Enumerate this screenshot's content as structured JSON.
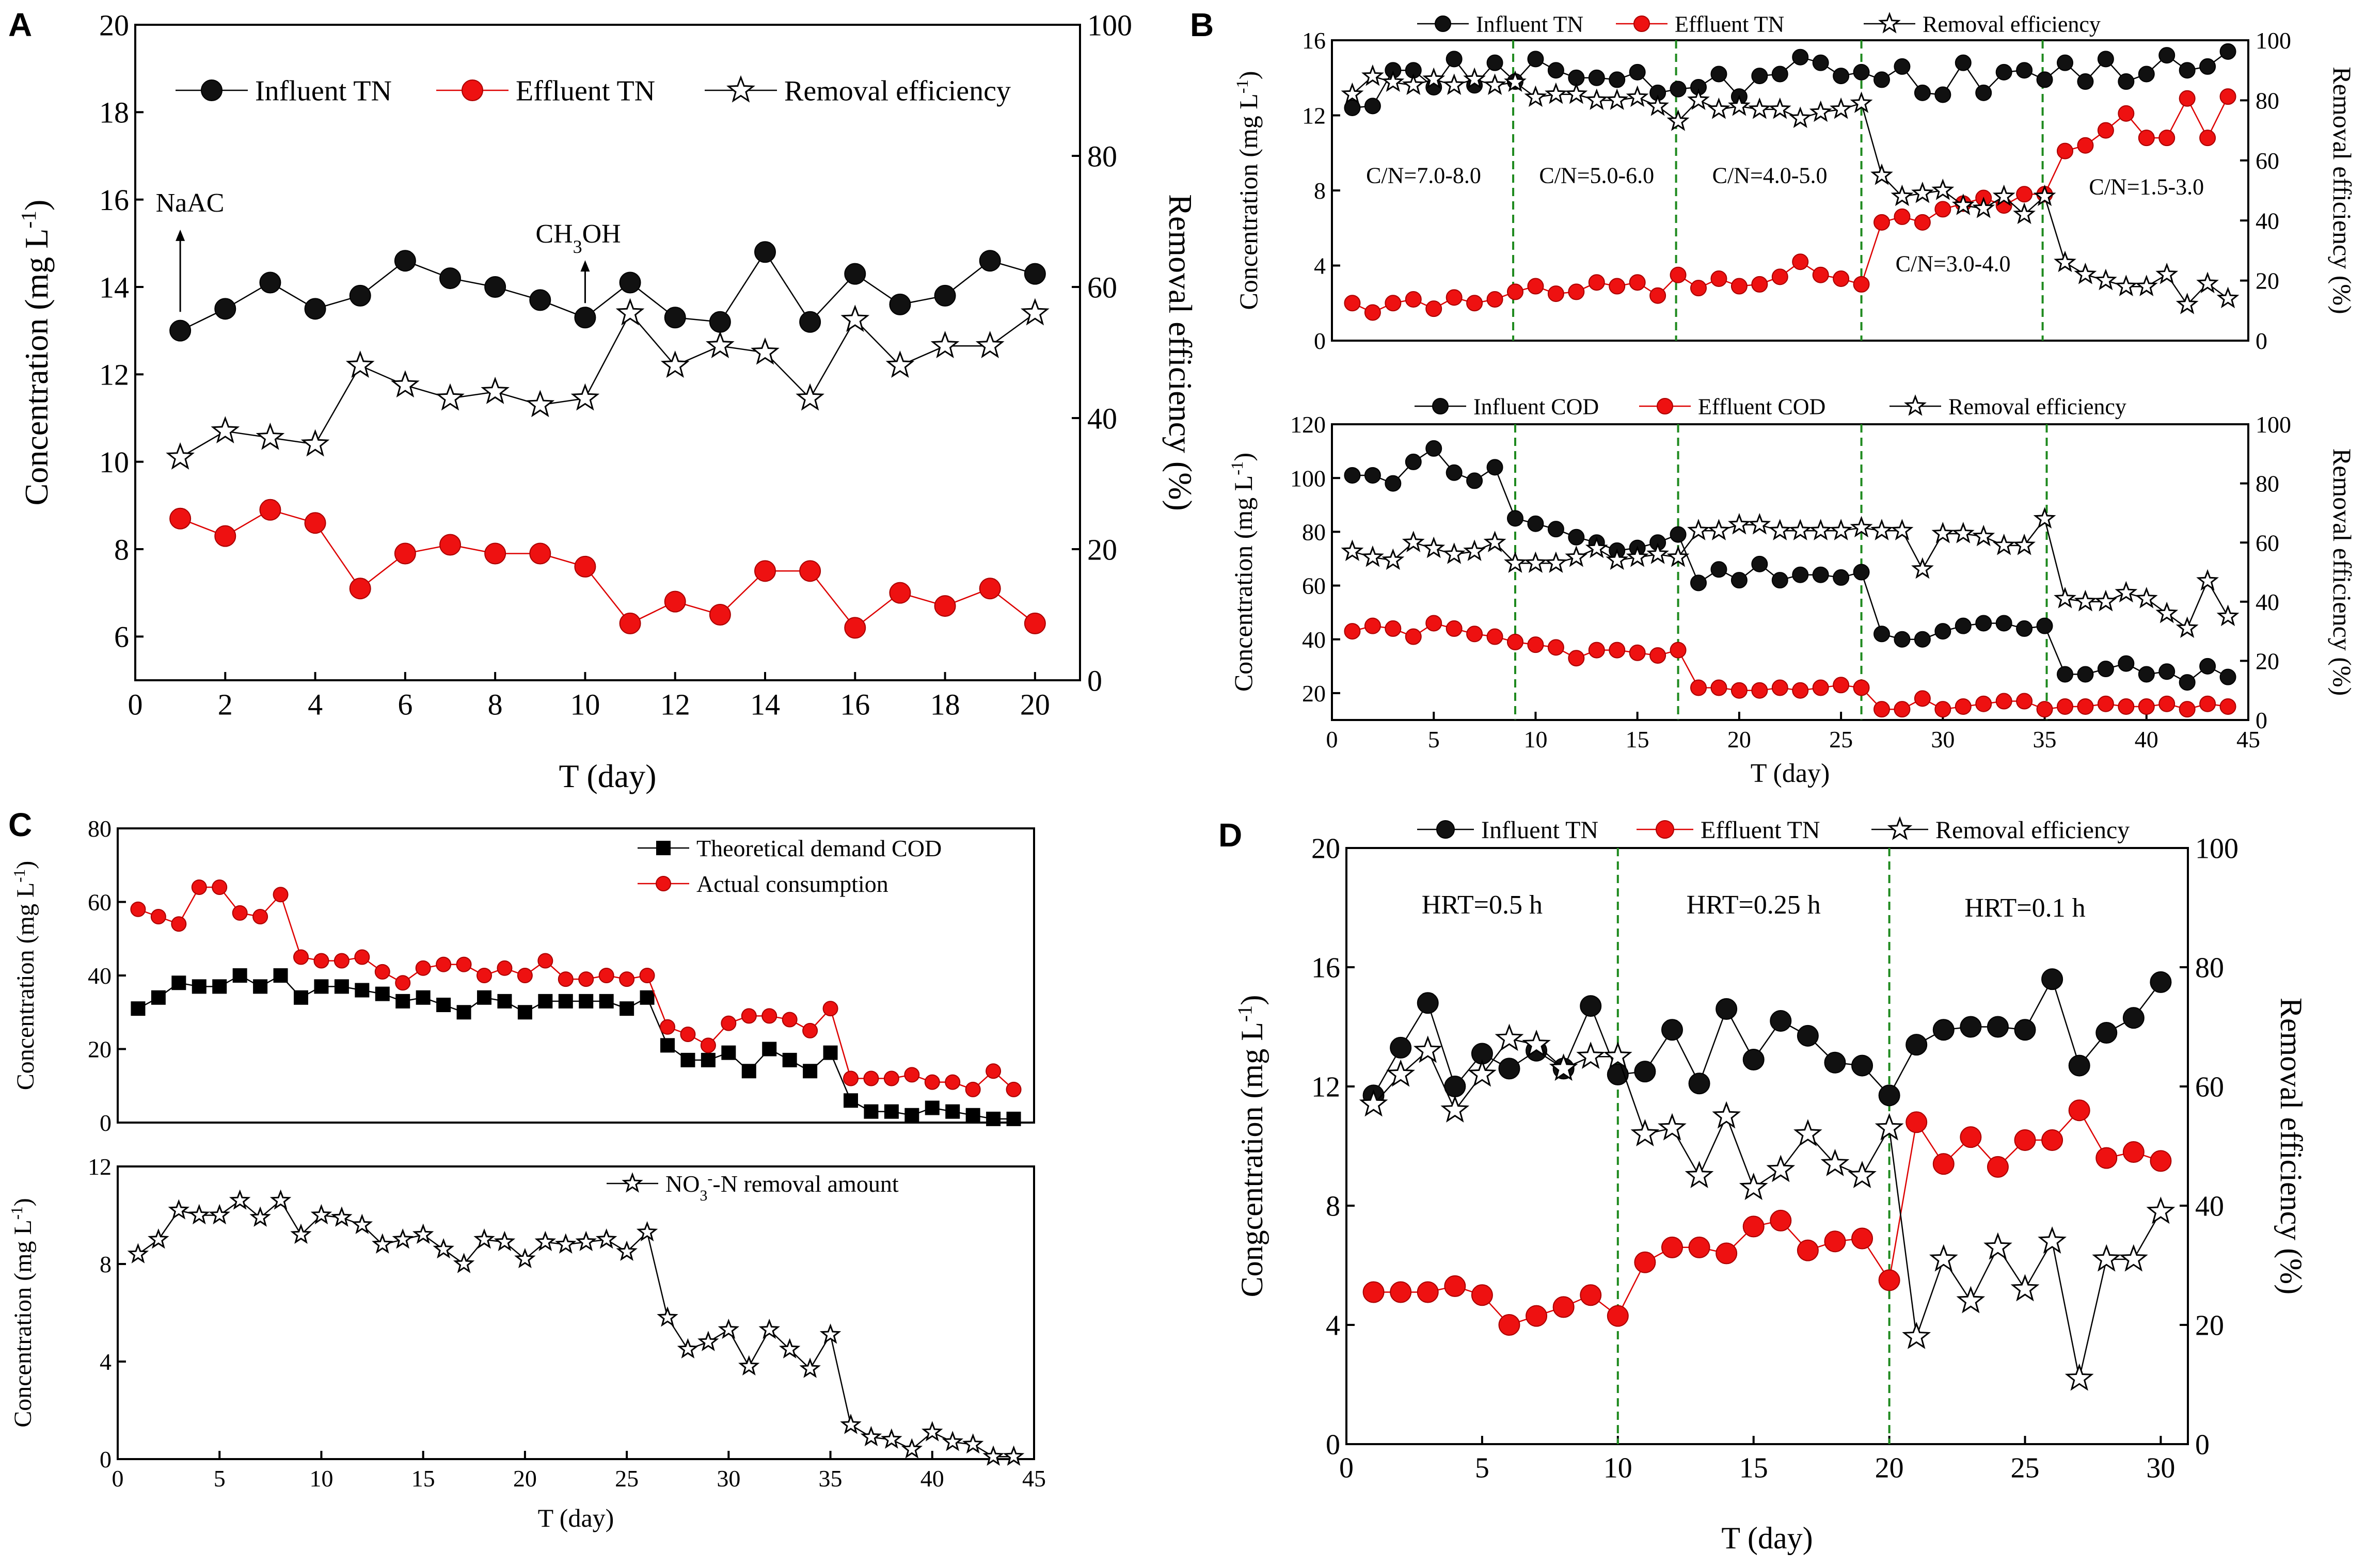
{
  "figure": {
    "panels": [
      "A",
      "B",
      "C",
      "D"
    ]
  },
  "chart_data": [
    {
      "id": "A",
      "type": "line",
      "xlabel": "T (day)",
      "ylabel": "Concentration (mg L-1)",
      "y2label": "Removal efficiency (%)",
      "xlim": [
        0,
        21
      ],
      "ylim": [
        5,
        20
      ],
      "y2lim": [
        0,
        100
      ],
      "xticks": [
        0,
        2,
        4,
        6,
        8,
        10,
        12,
        14,
        16,
        18,
        20
      ],
      "yticks": [
        6,
        8,
        10,
        12,
        14,
        16,
        18,
        20
      ],
      "y2ticks": [
        0,
        20,
        40,
        60,
        80,
        100
      ],
      "legend": "top",
      "annotations": [
        {
          "text": "NaAC",
          "x": 1,
          "y": 13.1
        },
        {
          "text": "CH3OH",
          "x": 10,
          "y": 13.3
        }
      ],
      "x": [
        1,
        2,
        3,
        4,
        5,
        6,
        7,
        8,
        9,
        10,
        11,
        12,
        13,
        14,
        15,
        16,
        17,
        18,
        19,
        20
      ],
      "series": [
        {
          "name": "Influent TN",
          "axis": "left",
          "marker": "black-circle",
          "values": [
            13.0,
            13.5,
            14.1,
            13.5,
            13.8,
            14.6,
            14.2,
            14.0,
            13.7,
            13.3,
            14.1,
            13.3,
            13.2,
            14.8,
            13.2,
            14.3,
            13.6,
            13.8,
            14.6,
            14.3
          ]
        },
        {
          "name": "Effluent TN",
          "axis": "left",
          "marker": "red-circle",
          "values": [
            8.7,
            8.3,
            8.9,
            8.6,
            7.1,
            7.9,
            8.1,
            7.9,
            7.9,
            7.6,
            6.3,
            6.8,
            6.5,
            7.5,
            7.5,
            6.2,
            7.0,
            6.7,
            7.1,
            6.3
          ]
        },
        {
          "name": "Removal efficiency",
          "axis": "right",
          "marker": "star",
          "values": [
            34,
            38,
            37,
            36,
            48,
            45,
            43,
            44,
            42,
            43,
            56,
            48,
            51,
            50,
            43,
            55,
            48,
            51,
            51,
            56
          ]
        }
      ]
    },
    {
      "id": "B-top",
      "type": "line",
      "xlabel": "",
      "ylabel": "Concentration (mg L-1)",
      "y2label": "Removal efficiency (%)",
      "xlim": [
        0,
        45
      ],
      "ylim": [
        0,
        16
      ],
      "y2lim": [
        0,
        100
      ],
      "xticks": [],
      "yticks": [
        0,
        4,
        8,
        12,
        16
      ],
      "y2ticks": [
        0,
        20,
        40,
        60,
        80,
        100
      ],
      "legend": "top",
      "phase_lines": [
        8.9,
        16.9,
        26.0,
        34.9
      ],
      "phase_labels": [
        {
          "text": "C/N=7.0-8.0",
          "x": 4.5,
          "y": 8.4
        },
        {
          "text": "C/N=5.0-6.0",
          "x": 13,
          "y": 8.4
        },
        {
          "text": "C/N=4.0-5.0",
          "x": 21.5,
          "y": 8.4
        },
        {
          "text": "C/N=3.0-4.0",
          "x": 30.5,
          "y": 3.7
        },
        {
          "text": "C/N=1.5-3.0",
          "x": 40,
          "y": 7.8
        }
      ],
      "x": [
        1,
        2,
        3,
        4,
        5,
        6,
        7,
        8,
        9,
        10,
        11,
        12,
        13,
        14,
        15,
        16,
        17,
        18,
        19,
        20,
        21,
        22,
        23,
        24,
        25,
        26,
        27,
        28,
        29,
        30,
        31,
        32,
        33,
        34,
        35,
        36,
        37,
        38,
        39,
        40,
        41,
        42,
        43,
        44
      ],
      "series": [
        {
          "name": "Influent TN",
          "axis": "left",
          "marker": "black-circle",
          "values": [
            12.4,
            12.5,
            14.4,
            14.4,
            13.5,
            15.0,
            13.6,
            14.8,
            13.8,
            15.0,
            14.4,
            14.0,
            14.0,
            13.9,
            14.3,
            13.2,
            13.4,
            13.5,
            14.2,
            13.0,
            14.1,
            14.2,
            15.1,
            14.8,
            14.1,
            14.3,
            13.9,
            14.6,
            13.2,
            13.1,
            14.8,
            13.2,
            14.3,
            14.4,
            13.9,
            14.8,
            13.8,
            15.0,
            13.8,
            14.2,
            15.2,
            14.4,
            14.6,
            15.4
          ]
        },
        {
          "name": "Effluent TN",
          "axis": "left",
          "marker": "red-circle",
          "values": [
            2.0,
            1.5,
            2.0,
            2.2,
            1.7,
            2.3,
            2.0,
            2.2,
            2.6,
            2.9,
            2.5,
            2.6,
            3.1,
            2.9,
            3.1,
            2.4,
            3.5,
            2.8,
            3.3,
            2.9,
            3.0,
            3.4,
            4.2,
            3.5,
            3.3,
            3.0,
            6.3,
            6.6,
            6.3,
            7.0,
            7.3,
            7.6,
            7.2,
            7.8,
            7.8,
            10.1,
            10.4,
            11.2,
            12.1,
            10.8,
            10.8,
            12.9,
            10.8,
            13.0
          ]
        },
        {
          "name": "Removal efficiency",
          "axis": "right",
          "marker": "star",
          "values": [
            82,
            88,
            86,
            85,
            87,
            85,
            87,
            85,
            86,
            81,
            82,
            82,
            80,
            80,
            81,
            78,
            73,
            80,
            77,
            78,
            77,
            77,
            74,
            76,
            77,
            79,
            55,
            48,
            49,
            50,
            45,
            44,
            48,
            42,
            48,
            26,
            22,
            20,
            18,
            18,
            22,
            12,
            19,
            14
          ]
        }
      ]
    },
    {
      "id": "B-bottom",
      "type": "line",
      "xlabel": "T (day)",
      "ylabel": "Concentration (mg L-1)",
      "y2label": "Removal efficiency (%)",
      "xlim": [
        0,
        45
      ],
      "ylim": [
        10,
        120
      ],
      "y2lim": [
        0,
        100
      ],
      "xticks": [
        0,
        5,
        10,
        15,
        20,
        25,
        30,
        35,
        40,
        45
      ],
      "yticks": [
        20,
        40,
        60,
        80,
        100,
        120
      ],
      "y2ticks": [
        0,
        20,
        40,
        60,
        80,
        100
      ],
      "legend": "top",
      "phase_lines": [
        9,
        17,
        26,
        35.1
      ],
      "x": [
        1,
        2,
        3,
        4,
        5,
        6,
        7,
        8,
        9,
        10,
        11,
        12,
        13,
        14,
        15,
        16,
        17,
        18,
        19,
        20,
        21,
        22,
        23,
        24,
        25,
        26,
        27,
        28,
        29,
        30,
        31,
        32,
        33,
        34,
        35,
        36,
        37,
        38,
        39,
        40,
        41,
        42,
        43,
        44
      ],
      "series": [
        {
          "name": "Influent COD",
          "axis": "left",
          "marker": "black-circle",
          "values": [
            101,
            101,
            98,
            106,
            111,
            102,
            99,
            104,
            85,
            83,
            81,
            78,
            76,
            73,
            74,
            76,
            79,
            61,
            66,
            62,
            68,
            62,
            64,
            64,
            63,
            65,
            42,
            40,
            40,
            43,
            45,
            46,
            46,
            44,
            45,
            27,
            27,
            29,
            31,
            27,
            28,
            24,
            30,
            26
          ]
        },
        {
          "name": "Effluent COD",
          "axis": "left",
          "marker": "red-circle",
          "values": [
            43,
            45,
            44,
            41,
            46,
            44,
            42,
            41,
            39,
            38,
            37,
            33,
            36,
            36,
            35,
            34,
            36,
            22,
            22,
            21,
            21,
            22,
            21,
            22,
            23,
            22,
            14,
            14,
            18,
            14,
            15,
            16,
            17,
            17,
            14,
            15,
            15,
            16,
            15,
            15,
            16,
            14,
            16,
            15
          ]
        },
        {
          "name": "Removal efficiency",
          "axis": "right",
          "marker": "star",
          "values": [
            57,
            55,
            54,
            60,
            58,
            56,
            57,
            60,
            53,
            53,
            53,
            55,
            58,
            54,
            55,
            56,
            55,
            64,
            64,
            66,
            66,
            64,
            64,
            64,
            64,
            65,
            64,
            64,
            51,
            63,
            63,
            62,
            59,
            59,
            68,
            41,
            40,
            40,
            43,
            41,
            36,
            31,
            47,
            35
          ]
        }
      ]
    },
    {
      "id": "C-top",
      "type": "line",
      "xlabel": "",
      "ylabel": "Concentration (mg L-1)",
      "xlim": [
        0,
        45
      ],
      "ylim": [
        0,
        80
      ],
      "xticks": [],
      "yticks": [
        0,
        20,
        40,
        60,
        80
      ],
      "legend": "top-right",
      "x": [
        1,
        2,
        3,
        4,
        5,
        6,
        7,
        8,
        9,
        10,
        11,
        12,
        13,
        14,
        15,
        16,
        17,
        18,
        19,
        20,
        21,
        22,
        23,
        24,
        25,
        26,
        27,
        28,
        29,
        30,
        31,
        32,
        33,
        34,
        35,
        36,
        37,
        38,
        39,
        40,
        41,
        42,
        43,
        44
      ],
      "series": [
        {
          "name": "Theoretical demand COD",
          "marker": "black-square",
          "values": [
            31,
            34,
            38,
            37,
            37,
            40,
            37,
            40,
            34,
            37,
            37,
            36,
            35,
            33,
            34,
            32,
            30,
            34,
            33,
            30,
            33,
            33,
            33,
            33,
            31,
            34,
            21,
            17,
            17,
            19,
            14,
            20,
            17,
            14,
            19,
            6,
            3,
            3,
            2,
            4,
            3,
            2,
            1,
            1
          ]
        },
        {
          "name": "Actual consumption",
          "marker": "red-circle",
          "values": [
            58,
            56,
            54,
            64,
            64,
            57,
            56,
            62,
            45,
            44,
            44,
            45,
            41,
            38,
            42,
            43,
            43,
            40,
            42,
            40,
            44,
            39,
            39,
            40,
            39,
            40,
            26,
            24,
            21,
            27,
            29,
            29,
            28,
            25,
            31,
            12,
            12,
            12,
            13,
            11,
            11,
            9,
            14,
            9
          ]
        }
      ]
    },
    {
      "id": "C-bottom",
      "type": "line",
      "xlabel": "T (day)",
      "ylabel": "Concentration (mg L-1)",
      "xlim": [
        0,
        45
      ],
      "ylim": [
        0,
        12
      ],
      "xticks": [
        0,
        5,
        10,
        15,
        20,
        25,
        30,
        35,
        40,
        45
      ],
      "yticks": [
        0,
        4,
        8,
        12
      ],
      "legend": "top-right",
      "x": [
        1,
        2,
        3,
        4,
        5,
        6,
        7,
        8,
        9,
        10,
        11,
        12,
        13,
        14,
        15,
        16,
        17,
        18,
        19,
        20,
        21,
        22,
        23,
        24,
        25,
        26,
        27,
        28,
        29,
        30,
        31,
        32,
        33,
        34,
        35,
        36,
        37,
        38,
        39,
        40,
        41,
        42,
        43,
        44
      ],
      "series": [
        {
          "name": "NO3--N removal amount",
          "marker": "star",
          "values": [
            8.4,
            9.0,
            10.2,
            10.0,
            10.0,
            10.6,
            9.9,
            10.6,
            9.2,
            10.0,
            9.9,
            9.6,
            8.8,
            9.0,
            9.2,
            8.6,
            8.0,
            9.0,
            8.9,
            8.2,
            8.9,
            8.8,
            8.9,
            9.0,
            8.5,
            9.3,
            5.8,
            4.5,
            4.8,
            5.3,
            3.8,
            5.3,
            4.5,
            3.7,
            5.1,
            1.4,
            0.9,
            0.8,
            0.4,
            1.1,
            0.7,
            0.6,
            0.1,
            0.1
          ]
        }
      ]
    },
    {
      "id": "D",
      "type": "line",
      "xlabel": "T (day)",
      "ylabel": "Congcentration (mg L-1)",
      "y2label": "Removal efficiency (%)",
      "xlim": [
        0,
        31
      ],
      "ylim": [
        0,
        20
      ],
      "y2lim": [
        0,
        100
      ],
      "xticks": [
        0,
        5,
        10,
        15,
        20,
        25,
        30
      ],
      "yticks": [
        0,
        4,
        8,
        12,
        16,
        20
      ],
      "y2ticks": [
        0,
        20,
        40,
        60,
        80,
        100
      ],
      "legend": "top",
      "phase_lines": [
        10,
        20
      ],
      "phase_labels": [
        {
          "text": "HRT=0.5 h",
          "x": 5,
          "y": 17.8
        },
        {
          "text": "HRT=0.25 h",
          "x": 15,
          "y": 17.8
        },
        {
          "text": "HRT=0.1 h",
          "x": 25,
          "y": 17.7
        }
      ],
      "x": [
        1,
        2,
        3,
        4,
        5,
        6,
        7,
        8,
        9,
        10,
        11,
        12,
        13,
        14,
        15,
        16,
        17,
        18,
        19,
        20,
        21,
        22,
        23,
        24,
        25,
        26,
        27,
        28,
        29,
        30
      ],
      "series": [
        {
          "name": "Influent TN",
          "axis": "left",
          "marker": "black-circle",
          "values": [
            11.7,
            13.3,
            14.8,
            12.0,
            13.1,
            12.6,
            13.2,
            12.6,
            14.7,
            12.4,
            12.5,
            13.9,
            12.1,
            14.6,
            12.9,
            14.2,
            13.7,
            12.8,
            12.7,
            11.7,
            13.4,
            13.9,
            14.0,
            14.0,
            13.9,
            15.6,
            12.7,
            13.8,
            14.3,
            15.5
          ]
        },
        {
          "name": "Effluent TN",
          "axis": "left",
          "marker": "red-circle",
          "values": [
            5.1,
            5.1,
            5.1,
            5.3,
            5.0,
            4.0,
            4.3,
            4.6,
            5.0,
            4.3,
            6.1,
            6.6,
            6.6,
            6.4,
            7.3,
            7.5,
            6.5,
            6.8,
            6.9,
            5.5,
            10.8,
            9.4,
            10.3,
            9.3,
            10.2,
            10.2,
            11.2,
            9.6,
            9.8,
            9.5
          ]
        },
        {
          "name": "Removal efficiency",
          "axis": "right",
          "marker": "star",
          "values": [
            57,
            62,
            66,
            56,
            62,
            68,
            67,
            63,
            65,
            65,
            52,
            53,
            45,
            55,
            43,
            46,
            52,
            47,
            45,
            53,
            18,
            31,
            24,
            33,
            26,
            34,
            11,
            31,
            31,
            39
          ]
        }
      ]
    }
  ]
}
